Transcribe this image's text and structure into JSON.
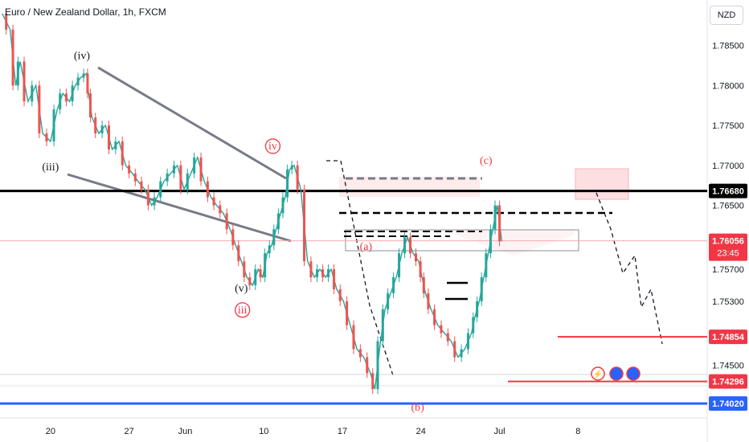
{
  "header": {
    "title": "Euro / New Zealand Dollar, 1h, FXCM",
    "currency": "NZD"
  },
  "chart_data": {
    "type": "line",
    "title": "Euro / New Zealand Dollar, 1h, FXCM",
    "ylim": [
      1.7384,
      1.7907
    ],
    "xlim": [
      0,
      63
    ],
    "y_ticks": [
      1.785,
      1.78,
      1.775,
      1.77,
      1.765,
      1.757,
      1.753,
      1.745
    ],
    "y_tick_labels": [
      "1.78500",
      "1.78000",
      "1.77500",
      "1.77000",
      "1.76500",
      "1.75700",
      "1.75300",
      "1.74500"
    ],
    "x_ticks": [
      {
        "x": 4.5,
        "label": "20"
      },
      {
        "x": 11.5,
        "label": "27"
      },
      {
        "x": 16.5,
        "label": "Jun"
      },
      {
        "x": 23.5,
        "label": "10"
      },
      {
        "x": 30.5,
        "label": "17"
      },
      {
        "x": 37.5,
        "label": "24"
      },
      {
        "x": 44.5,
        "label": "Jul"
      },
      {
        "x": 51.5,
        "label": "8"
      }
    ],
    "price_levels": [
      {
        "value": 1.7668,
        "label": "1.76680",
        "color": "#000000",
        "tag_bg": "#000000",
        "tag_text": "#ffffff"
      },
      {
        "value": 1.76056,
        "label": "1.76056",
        "sublabel": "23:45",
        "color": "#f23645",
        "tag_bg": "#f23645",
        "tag_text": "#ffffff"
      },
      {
        "value": 1.74854,
        "label": "1.74854",
        "color": "#f23645",
        "tag_bg": "#f23645",
        "tag_text": "#ffffff"
      },
      {
        "value": 1.74296,
        "label": "1.74296",
        "color": "#f23645",
        "tag_bg": "#f23645",
        "tag_text": "#ffffff"
      },
      {
        "value": 1.7402,
        "label": "1.74020",
        "color": "#2962ff",
        "tag_bg": "#2962ff",
        "tag_text": "#ffffff"
      }
    ],
    "wave_labels": [
      {
        "text": "(iv)",
        "x": 7.3,
        "y": 1.7833,
        "color": "#131722"
      },
      {
        "text": "(iii)",
        "x": 4.5,
        "y": 1.7694,
        "color": "#131722"
      },
      {
        "text": "(v)",
        "x": 21.5,
        "y": 1.7542,
        "color": "#131722"
      },
      {
        "text": "iii",
        "x": 21.6,
        "y": 1.7515,
        "color": "#f23645",
        "circled": true
      },
      {
        "text": "iv",
        "x": 24.3,
        "y": 1.772,
        "color": "#f23645",
        "circled": true
      },
      {
        "text": "(a)",
        "x": 32.6,
        "y": 1.7594,
        "color": "#f23645"
      },
      {
        "text": "(b)",
        "x": 37.2,
        "y": 1.7393,
        "color": "#f23645"
      },
      {
        "text": "(c)",
        "x": 43.3,
        "y": 1.7702,
        "color": "#f23645"
      }
    ],
    "series": [
      {
        "name": "EUR/NZD",
        "color": "#26a69a",
        "x": [
          0.2,
          0.9,
          1.4,
          1.8,
          2.5,
          3.2,
          3.8,
          4.5,
          5.1,
          5.6,
          6.2,
          6.7,
          7.2,
          7.7,
          7.9,
          8.2,
          8.8,
          9.4,
          10.0,
          10.6,
          11.2,
          11.8,
          12.3,
          12.9,
          13.5,
          14.0,
          14.6,
          15.2,
          15.8,
          16.4,
          17.0,
          17.6,
          18.2,
          18.8,
          19.3,
          19.9,
          20.5,
          21.0,
          21.5,
          22.0,
          22.5,
          23.0,
          23.4,
          23.8,
          24.2,
          24.6,
          25.0,
          25.4,
          25.8,
          26.2,
          26.8,
          27.4,
          28.0,
          28.5,
          29.0,
          29.5,
          30.0,
          30.6,
          31.2,
          31.8,
          32.4,
          33.0,
          33.4,
          33.9,
          34.3,
          34.8,
          35.3,
          35.8,
          36.3,
          36.8,
          37.3,
          37.6,
          37.9,
          38.4,
          39.0,
          39.6,
          40.2,
          40.8,
          41.4,
          42.0,
          42.3,
          42.7,
          43.1,
          43.5,
          43.9,
          44.3,
          44.7
        ],
        "values": [
          1.789,
          1.787,
          1.78,
          1.783,
          1.778,
          1.78,
          1.774,
          1.773,
          1.777,
          1.779,
          1.778,
          1.78,
          1.781,
          1.7815,
          1.779,
          1.776,
          1.774,
          1.775,
          1.772,
          1.773,
          1.77,
          1.769,
          1.768,
          1.767,
          1.765,
          1.766,
          1.768,
          1.769,
          1.77,
          1.767,
          1.769,
          1.771,
          1.768,
          1.766,
          1.765,
          1.764,
          1.762,
          1.76,
          1.758,
          1.756,
          1.755,
          1.757,
          1.756,
          1.759,
          1.76,
          1.762,
          1.764,
          1.766,
          1.7695,
          1.77,
          1.767,
          1.758,
          1.756,
          1.757,
          1.756,
          1.757,
          1.7545,
          1.753,
          1.75,
          1.747,
          1.746,
          1.744,
          1.742,
          1.748,
          1.752,
          1.754,
          1.756,
          1.759,
          1.761,
          1.759,
          1.758,
          1.756,
          1.754,
          1.752,
          1.75,
          1.749,
          1.748,
          1.746,
          1.747,
          1.749,
          1.751,
          1.753,
          1.756,
          1.759,
          1.762,
          1.765,
          1.7605
        ]
      }
    ]
  }
}
